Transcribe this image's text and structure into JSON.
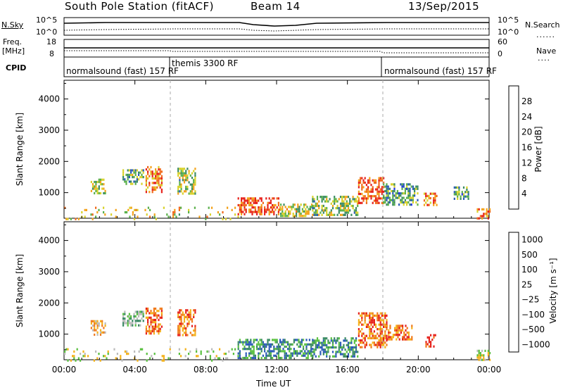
{
  "header": {
    "station_title": "South Pole Station (fitACF)",
    "beam_label": "Beam 14",
    "date_label": "13/Sep/2015"
  },
  "top_panels": {
    "nsky": {
      "label": "N.Sky",
      "ticks": [
        "10^5",
        "10^0"
      ]
    },
    "nsearch": {
      "label": "N.Search",
      "ticks": [
        "10^5",
        "10^0"
      ]
    },
    "freq": {
      "label_line1": "Freq.",
      "label_line2": "[MHz]",
      "ticks": [
        "18",
        "8"
      ]
    },
    "nave": {
      "label": "Nave",
      "ticks": [
        "60",
        "0"
      ]
    },
    "cpid": {
      "label": "CPID",
      "segments": [
        {
          "text": "normalsound (fast) 157 RF",
          "start_hour": 0,
          "end_hour": 6
        },
        {
          "text": "themis 3300 RF",
          "start_hour": 6,
          "end_hour": 18
        },
        {
          "text": "normalsound (fast) 157 RF",
          "start_hour": 18,
          "end_hour": 24
        }
      ]
    }
  },
  "chart_data": [
    {
      "type": "heatmap",
      "ylabel": "Slant Range [km]",
      "xlabel": "",
      "x_ticks": [
        "00:00",
        "04:00",
        "08:00",
        "12:00",
        "16:00",
        "20:00",
        "00:00"
      ],
      "xlim_hours": [
        0,
        24
      ],
      "ylim": [
        180,
        4600
      ],
      "y_ticks": [
        1000,
        2000,
        3000,
        4000
      ],
      "colorbar": {
        "label": "Power [dB]",
        "ticks": [
          "4",
          "8",
          "12",
          "16",
          "20",
          "24",
          "28"
        ],
        "range": [
          0,
          30
        ],
        "colors": [
          "#1f2fe6",
          "#2a5ab8",
          "#3a8a64",
          "#5ab04a",
          "#d8d22a",
          "#f4a21a",
          "#f06a1c",
          "#e6201a"
        ]
      },
      "clusters": [
        {
          "t0": 1.5,
          "t1": 2.3,
          "r0": 950,
          "r1": 1450,
          "v": 15
        },
        {
          "t0": 3.3,
          "t1": 4.5,
          "r0": 1250,
          "r1": 1750,
          "v": 12
        },
        {
          "t0": 4.6,
          "t1": 5.5,
          "r0": 1050,
          "r1": 1850,
          "v": 24
        },
        {
          "t0": 6.4,
          "t1": 7.4,
          "r0": 950,
          "r1": 1800,
          "v": 14
        },
        {
          "t0": 9.8,
          "t1": 12.2,
          "r0": 300,
          "r1": 850,
          "v": 26
        },
        {
          "t0": 12.2,
          "t1": 14.0,
          "r0": 250,
          "r1": 650,
          "v": 16
        },
        {
          "t0": 14.0,
          "t1": 16.6,
          "r0": 300,
          "r1": 900,
          "v": 14
        },
        {
          "t0": 16.6,
          "t1": 18.0,
          "r0": 700,
          "r1": 1500,
          "v": 26
        },
        {
          "t0": 18.0,
          "t1": 20.0,
          "r0": 600,
          "r1": 1300,
          "v": 10
        },
        {
          "t0": 20.3,
          "t1": 21.0,
          "r0": 600,
          "r1": 1000,
          "v": 22
        },
        {
          "t0": 22.0,
          "t1": 22.8,
          "r0": 800,
          "r1": 1200,
          "v": 10
        },
        {
          "t0": 23.3,
          "t1": 24.0,
          "r0": 200,
          "r1": 500,
          "v": 24
        },
        {
          "t0": 0.0,
          "t1": 9.8,
          "r0": 180,
          "r1": 550,
          "v": 18,
          "sparse": true
        }
      ]
    },
    {
      "type": "heatmap",
      "ylabel": "Slant Range [km]",
      "xlabel": "Time UT",
      "x_ticks": [
        "00:00",
        "04:00",
        "08:00",
        "12:00",
        "16:00",
        "20:00",
        "00:00"
      ],
      "xlim_hours": [
        0,
        24
      ],
      "ylim": [
        180,
        4600
      ],
      "y_ticks": [
        1000,
        2000,
        3000,
        4000
      ],
      "colorbar": {
        "label": "Velocity [m s⁻¹]",
        "ticks": [
          "1000",
          "500",
          "100",
          "25",
          "−25",
          "−100",
          "−500",
          "−1000"
        ],
        "colors": [
          "#1f2fe6",
          "#2a5ab8",
          "#3a8a64",
          "#5ac040",
          "#bcbcbc",
          "#f4b21a",
          "#f07a1c",
          "#e6201a"
        ]
      },
      "clusters": [
        {
          "t0": 1.5,
          "t1": 2.3,
          "r0": 950,
          "r1": 1450,
          "v": 5
        },
        {
          "t0": 3.3,
          "t1": 4.5,
          "r0": 1250,
          "r1": 1750,
          "v": 3
        },
        {
          "t0": 4.6,
          "t1": 5.5,
          "r0": 1050,
          "r1": 1850,
          "v": 6
        },
        {
          "t0": 6.4,
          "t1": 7.4,
          "r0": 950,
          "r1": 1800,
          "v": 6
        },
        {
          "t0": 9.8,
          "t1": 14.0,
          "r0": 250,
          "r1": 850,
          "v": 2
        },
        {
          "t0": 14.0,
          "t1": 16.6,
          "r0": 300,
          "r1": 900,
          "v": 2
        },
        {
          "t0": 16.6,
          "t1": 18.2,
          "r0": 600,
          "r1": 1700,
          "v": 6
        },
        {
          "t0": 18.2,
          "t1": 19.6,
          "r0": 800,
          "r1": 1300,
          "v": 6
        },
        {
          "t0": 20.4,
          "t1": 21.0,
          "r0": 600,
          "r1": 1000,
          "v": 7
        },
        {
          "t0": 23.3,
          "t1": 24.0,
          "r0": 200,
          "r1": 500,
          "v": 4
        },
        {
          "t0": 0.0,
          "t1": 9.8,
          "r0": 180,
          "r1": 550,
          "v": 4,
          "sparse": true
        }
      ]
    }
  ]
}
